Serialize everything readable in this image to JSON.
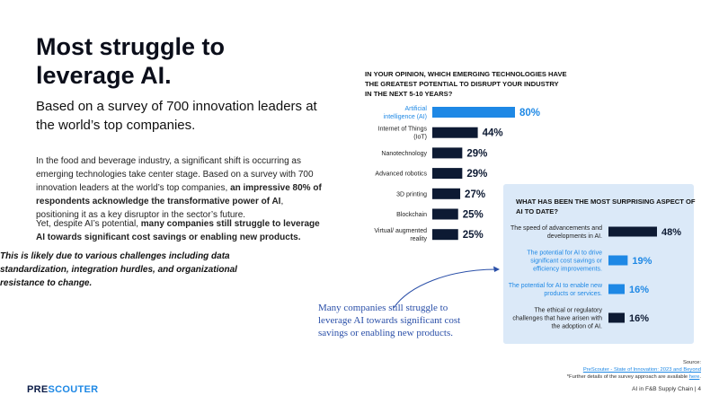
{
  "title": "Most struggle to\nleverage AI.",
  "subtitle": "Based on a survey of 700 innovation leaders at the world’s top companies.",
  "paragraph1": {
    "text1": "In the food and beverage industry, a significant shift is occurring as emerging technologies take center stage. Based on a survey with 700 innovation leaders at the world’s top companies, ",
    "bold": "an impressive 80% of respondents acknowledge the transformative power of AI",
    "text2": ", positioning it as a key disruptor in the sector’s future."
  },
  "paragraph2": {
    "text1": "Yet, despite AI’s potential, ",
    "bold": "many companies still struggle to leverage AI towards significant cost savings or enabling new products."
  },
  "paragraph3": "This is likely due to various challenges including data standardization, integration hurdles, and organizational resistance to change.",
  "callout": "Many companies still struggle to leverage AI towards significant cost savings or enabling new products.",
  "logo": {
    "part1": "PRE",
    "part2": "SCOUTER"
  },
  "source": {
    "label": "Source:",
    "link": "PreScouter - State of Innovation: 2023 and Beyond",
    "note_prefix": "*Further details of the survey approach are available ",
    "note_link": "here",
    "note_suffix": "."
  },
  "footer": "AI in F&B Supply Chain | 4",
  "colors": {
    "bar": "#0d1a33",
    "highlight": "#1e88e5",
    "panel": "#dbe9f8",
    "callout": "#2a4fa8"
  },
  "chart_data": [
    {
      "type": "bar",
      "orientation": "horizontal",
      "title": "IN YOUR OPINION, WHICH EMERGING TECHNOLOGIES HAVE THE GREATEST POTENTIAL TO DISRUPT YOUR INDUSTRY IN THE NEXT 5-10 YEARS?",
      "categories": [
        "Artificial intelligence (AI)",
        "Internet of Things (IoT)",
        "Nanotechnology",
        "Advanced robotics",
        "3D printing",
        "Blockchain",
        "Virtual/ augmented reality"
      ],
      "values": [
        80,
        44,
        29,
        29,
        27,
        25,
        25
      ],
      "value_labels": [
        "80%",
        "44%",
        "29%",
        "29%",
        "27%",
        "25%",
        "25%"
      ],
      "highlight_index": 0,
      "xlim": [
        0,
        80
      ]
    },
    {
      "type": "bar",
      "orientation": "horizontal",
      "title": "WHAT HAS BEEN THE MOST SURPRISING ASPECT OF AI TO DATE?",
      "categories": [
        "The speed of advancements and developments in AI.",
        "The potential for AI to drive significant cost savings or efficiency improvements.",
        "The potential for AI to enable new products or services.",
        "The ethical or regulatory challenges that have arisen with the adoption of AI."
      ],
      "values": [
        48,
        19,
        16,
        16
      ],
      "value_labels": [
        "48%",
        "19%",
        "16%",
        "16%"
      ],
      "highlight_indices": [
        1,
        2
      ],
      "xlim": [
        0,
        48
      ]
    }
  ]
}
